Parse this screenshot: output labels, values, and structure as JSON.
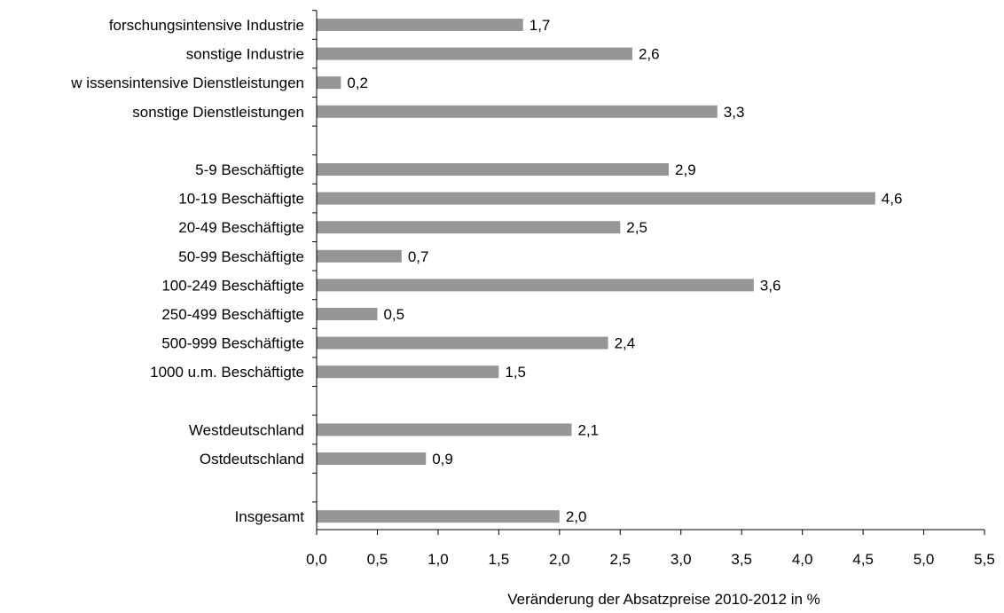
{
  "chart_data": {
    "type": "bar",
    "orientation": "horizontal",
    "title": "",
    "xlabel": "Veränderung der Absatzpreise 2010-2012 in %",
    "ylabel": "",
    "xlim": [
      0,
      5.5
    ],
    "x_ticks": [
      0,
      0.5,
      1,
      1.5,
      2,
      2.5,
      3,
      3.5,
      4,
      4.5,
      5,
      5.5
    ],
    "x_tick_labels": [
      "0,0",
      "0,5",
      "1,0",
      "1,5",
      "2,0",
      "2,5",
      "3,0",
      "3,5",
      "4,0",
      "4,5",
      "5,0",
      "5,5"
    ],
    "grid": false,
    "legend": "none",
    "bar_color": "#969696",
    "categories": [
      "forschungsintensive Industrie",
      "sonstige Industrie",
      "w issensintensive Dienstleistungen",
      "sonstige Dienstleistungen",
      "",
      "5-9 Beschäftigte",
      "10-19 Beschäftigte",
      "20-49 Beschäftigte",
      "50-99 Beschäftigte",
      "100-249 Beschäftigte",
      "250-499 Beschäftigte",
      "500-999 Beschäftigte",
      "1000 u.m. Beschäftigte",
      "",
      "Westdeutschland",
      "Ostdeutschland",
      "",
      "Insgesamt"
    ],
    "values": [
      1.7,
      2.6,
      0.2,
      3.3,
      null,
      2.9,
      4.6,
      2.5,
      0.7,
      3.6,
      0.5,
      2.4,
      1.5,
      null,
      2.1,
      0.9,
      null,
      2.0
    ],
    "data_labels": [
      "1,7",
      "2,6",
      "0,2",
      "3,3",
      "",
      "2,9",
      "4,6",
      "2,5",
      "0,7",
      "3,6",
      "0,5",
      "2,4",
      "1,5",
      "",
      "2,1",
      "0,9",
      "",
      "2,0"
    ]
  }
}
